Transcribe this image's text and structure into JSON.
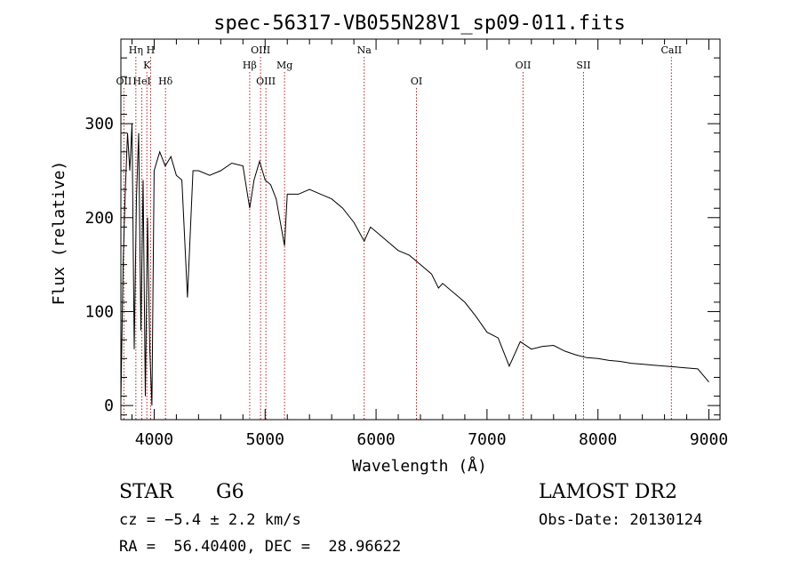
{
  "chart_data": {
    "type": "line",
    "title": "spec-56317-VB055N28V1_sp09-011.fits",
    "xlabel": "Wavelength (Å)",
    "ylabel": "Flux (relative)",
    "xlim": [
      3700,
      9100
    ],
    "ylim": [
      -15,
      390
    ],
    "x_ticks": [
      4000,
      5000,
      6000,
      7000,
      8000,
      9000
    ],
    "x_tick_labels": [
      "4000",
      "5000",
      "6000",
      "7000",
      "8000",
      "9000"
    ],
    "y_ticks": [
      0,
      100,
      200,
      300
    ],
    "y_tick_labels": [
      "0",
      "100",
      "200",
      "300"
    ],
    "grid": false,
    "series": [
      {
        "color": "#000000",
        "x": [
          3700,
          3720,
          3740,
          3760,
          3780,
          3800,
          3820,
          3840,
          3860,
          3880,
          3900,
          3920,
          3940,
          3960,
          3980,
          4000,
          4050,
          4100,
          4150,
          4200,
          4250,
          4300,
          4350,
          4400,
          4500,
          4600,
          4700,
          4800,
          4861,
          4900,
          4950,
          5000,
          5050,
          5100,
          5175,
          5200,
          5300,
          5400,
          5500,
          5600,
          5700,
          5800,
          5893,
          5950,
          6000,
          6100,
          6200,
          6300,
          6400,
          6500,
          6563,
          6600,
          6700,
          6800,
          6900,
          7000,
          7100,
          7200,
          7300,
          7400,
          7500,
          7600,
          7700,
          7800,
          7900,
          8000,
          8100,
          8200,
          8300,
          8400,
          8500,
          8600,
          8700,
          8800,
          8900,
          9000
        ],
        "y": [
          5,
          150,
          230,
          290,
          250,
          300,
          60,
          220,
          290,
          80,
          240,
          10,
          200,
          60,
          0,
          250,
          270,
          255,
          265,
          245,
          240,
          115,
          250,
          250,
          245,
          250,
          258,
          255,
          210,
          240,
          260,
          240,
          235,
          220,
          170,
          225,
          225,
          230,
          225,
          220,
          210,
          195,
          175,
          190,
          185,
          175,
          165,
          160,
          150,
          140,
          125,
          130,
          120,
          110,
          95,
          78,
          72,
          42,
          68,
          60,
          63,
          64,
          58,
          54,
          51,
          50,
          48,
          47,
          45,
          44,
          43,
          42,
          41,
          40,
          39,
          25
        ]
      }
    ],
    "line_markers": [
      {
        "label": "OII",
        "x": 3727
      },
      {
        "label": "Hη",
        "x": 3835
      },
      {
        "label": "H",
        "x": 3968
      },
      {
        "label": "K",
        "x": 3934
      },
      {
        "label": "HeI",
        "x": 3889
      },
      {
        "label": "Hδ",
        "x": 4102
      },
      {
        "label": "OIII",
        "x": 4959
      },
      {
        "label": "Hβ",
        "x": 4861
      },
      {
        "label": "OIII",
        "x": 5007
      },
      {
        "label": "Mg",
        "x": 5175
      },
      {
        "label": "Na",
        "x": 5893
      },
      {
        "label": "OI",
        "x": 6364
      },
      {
        "label": "OII",
        "x": 7325
      },
      {
        "label": "SII",
        "x": 7870
      },
      {
        "label": "CaII",
        "x": 8662
      }
    ],
    "marker_color": "#b22222"
  },
  "info": {
    "object_class": "STAR",
    "subclass": "G6",
    "survey": "LAMOST DR2",
    "cz": "cz = −5.4 ± 2.2 km/s",
    "obs_date": "Obs-Date: 20130124",
    "coords": "RA =  56.40400, DEC =  28.96622"
  }
}
